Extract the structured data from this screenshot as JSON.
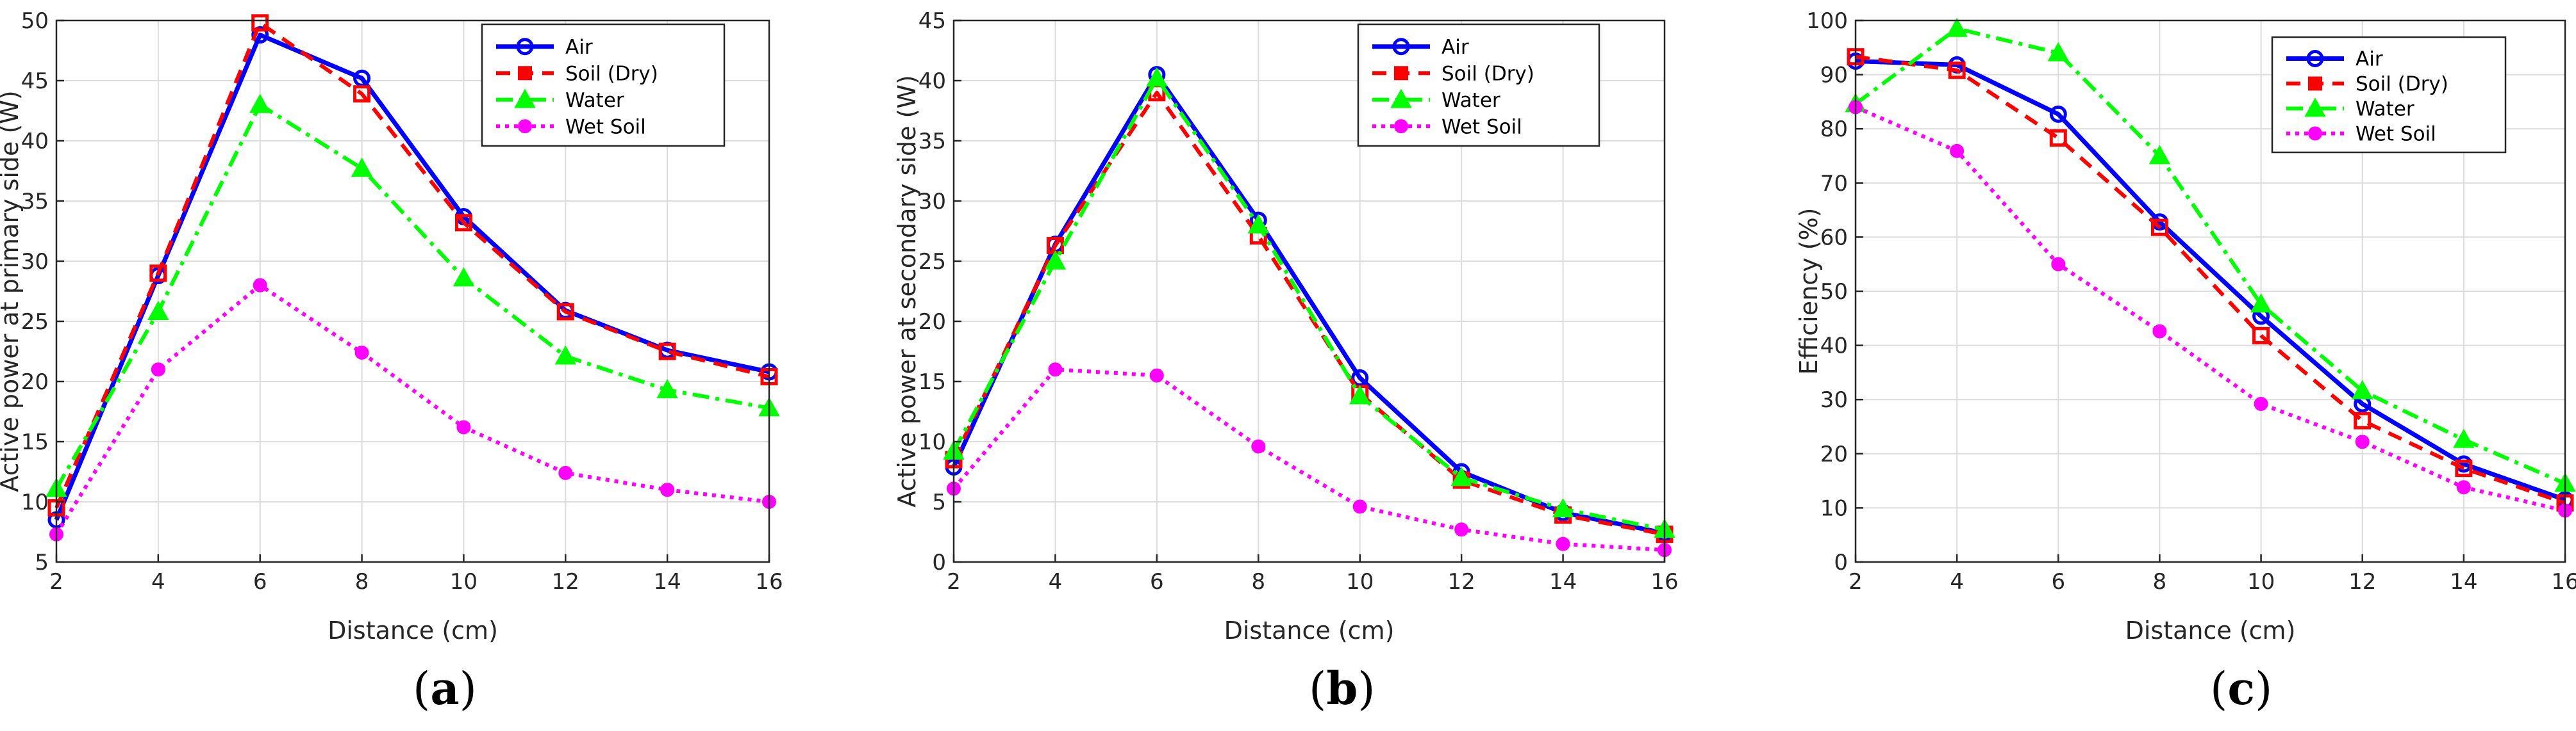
{
  "colors": {
    "air": "#0000ff",
    "soil": "#ff0000",
    "water": "#00ff00",
    "wet": "#ff00ff",
    "grid": "#dcdcdc",
    "axis": "#262626"
  },
  "legend_labels": [
    "Air",
    "Soil (Dry)",
    "Water",
    "Wet Soil"
  ],
  "chart_data": [
    {
      "type": "line",
      "caption": "a",
      "xlabel": "Distance (cm)",
      "ylabel": "Active power at primary side (W)",
      "x": [
        2,
        4,
        6,
        8,
        10,
        12,
        14,
        16
      ],
      "xlim": [
        2,
        16
      ],
      "ylim": [
        5,
        50
      ],
      "xticks": [
        2,
        4,
        6,
        8,
        10,
        12,
        14,
        16
      ],
      "yticks": [
        5,
        10,
        15,
        20,
        25,
        30,
        35,
        40,
        45,
        50
      ],
      "grid": true,
      "legend_position": "top-right",
      "series": [
        {
          "name": "Air",
          "values": [
            8.5,
            28.8,
            48.8,
            45.2,
            33.7,
            25.9,
            22.6,
            20.8
          ]
        },
        {
          "name": "Soil (Dry)",
          "values": [
            9.5,
            29.0,
            49.8,
            43.9,
            33.2,
            25.8,
            22.5,
            20.4
          ]
        },
        {
          "name": "Water",
          "values": [
            11.1,
            25.8,
            43.0,
            37.7,
            28.6,
            22.1,
            19.3,
            17.8
          ]
        },
        {
          "name": "Wet Soil",
          "values": [
            7.3,
            21.0,
            28.0,
            22.4,
            16.2,
            12.4,
            11.0,
            10.0
          ]
        }
      ]
    },
    {
      "type": "line",
      "caption": "b",
      "xlabel": "Distance (cm)",
      "ylabel": "Active power at secondary side (W)",
      "x": [
        2,
        4,
        6,
        8,
        10,
        12,
        14,
        16
      ],
      "xlim": [
        2,
        16
      ],
      "ylim": [
        0,
        45
      ],
      "xticks": [
        2,
        4,
        6,
        8,
        10,
        12,
        14,
        16
      ],
      "yticks": [
        0,
        5,
        10,
        15,
        20,
        25,
        30,
        35,
        40,
        45
      ],
      "grid": true,
      "legend_position": "top-right",
      "series": [
        {
          "name": "Air",
          "values": [
            7.9,
            26.4,
            40.5,
            28.4,
            15.3,
            7.5,
            4.1,
            2.4
          ]
        },
        {
          "name": "Soil (Dry)",
          "values": [
            8.5,
            26.3,
            39.0,
            27.1,
            14.0,
            6.8,
            3.9,
            2.3
          ]
        },
        {
          "name": "Water",
          "values": [
            9.2,
            25.0,
            40.2,
            28.0,
            13.8,
            7.0,
            4.4,
            2.7
          ]
        },
        {
          "name": "Wet Soil",
          "values": [
            6.1,
            16.0,
            15.5,
            9.6,
            4.6,
            2.7,
            1.5,
            1.0
          ]
        }
      ]
    },
    {
      "type": "line",
      "caption": "c",
      "xlabel": "Distance (cm)",
      "ylabel": "Efficiency (%)",
      "x": [
        2,
        4,
        6,
        8,
        10,
        12,
        14,
        16
      ],
      "xlim": [
        2,
        16
      ],
      "ylim": [
        0,
        100
      ],
      "xticks": [
        2,
        4,
        6,
        8,
        10,
        12,
        14,
        16
      ],
      "yticks": [
        0,
        10,
        20,
        30,
        40,
        50,
        60,
        70,
        80,
        90,
        100
      ],
      "grid": true,
      "legend_position": "top-right",
      "series": [
        {
          "name": "Air",
          "values": [
            92.5,
            91.8,
            82.7,
            62.8,
            45.4,
            29.2,
            18.1,
            11.5
          ]
        },
        {
          "name": "Soil (Dry)",
          "values": [
            93.3,
            90.8,
            78.3,
            61.8,
            41.8,
            26.1,
            17.3,
            10.9
          ]
        },
        {
          "name": "Water",
          "values": [
            84.6,
            98.5,
            94.0,
            75.0,
            47.6,
            31.6,
            22.6,
            14.5
          ]
        },
        {
          "name": "Wet Soil",
          "values": [
            84.0,
            75.9,
            55.0,
            42.6,
            29.2,
            22.2,
            13.8,
            9.5
          ]
        }
      ]
    }
  ]
}
